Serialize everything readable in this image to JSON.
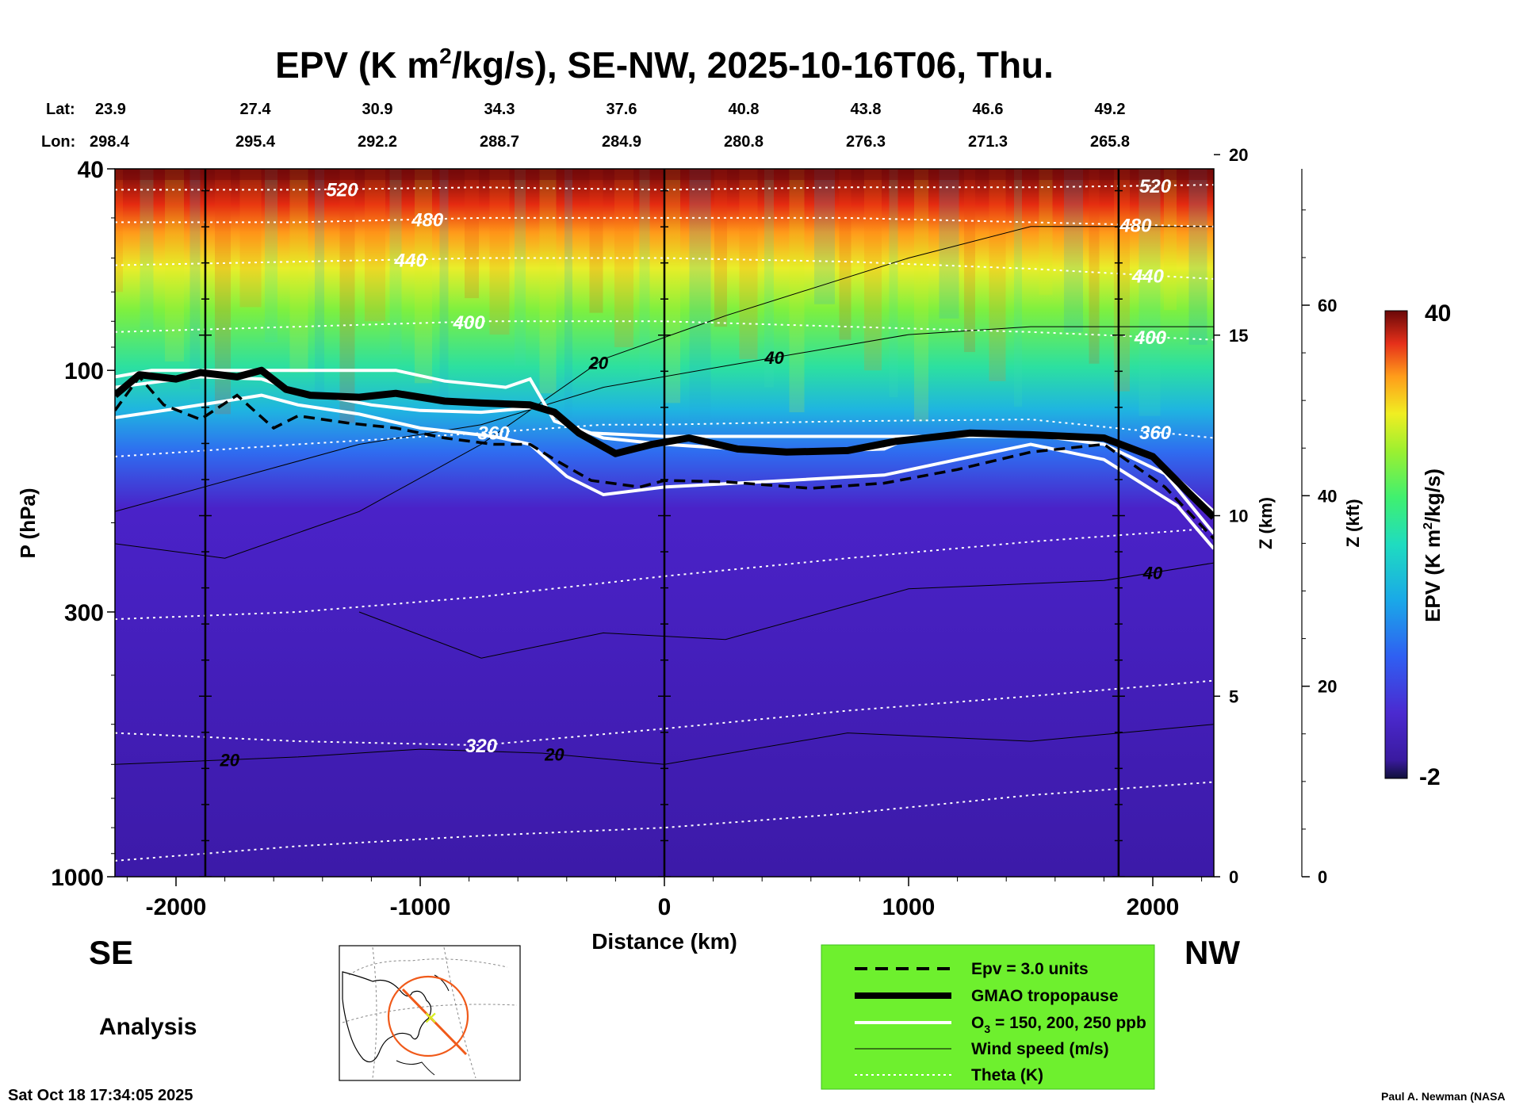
{
  "chart_data": {
    "type": "heatmap",
    "title": "EPV (K m²/kg/s), SE-NW, 2025-10-16T06, Thu.",
    "title_parts": {
      "pre": "EPV (K m",
      "sup": "2",
      "post": "/kg/s), SE-NW, 2025-10-16T06, Thu."
    },
    "xlabel": "Distance (km)",
    "ylabel": "P (hPa)",
    "zlabel": "Z (km)",
    "zkft_label": "Z (kft)",
    "xlim": [
      -2250,
      2250
    ],
    "ylim_hPa": [
      1000,
      40
    ],
    "x_ticks": [
      -2000,
      -1000,
      0,
      1000,
      2000
    ],
    "x_tick_labels": [
      "-2000",
      "-1000",
      "0",
      "1000",
      "2000"
    ],
    "p_ticks": [
      40,
      100,
      300,
      1000
    ],
    "p_tick_labels": [
      "40",
      "100",
      "300",
      "1000"
    ],
    "z_km_ticks": [
      0,
      5,
      10,
      15,
      20
    ],
    "z_km_tick_labels": [
      "0",
      "5",
      "10",
      "15",
      "20"
    ],
    "z_kft_ticks": [
      0,
      20,
      40,
      60
    ],
    "z_kft_tick_labels": [
      "0",
      "20",
      "40",
      "60"
    ],
    "lat_label": "Lat:",
    "lon_label": "Lon:",
    "lat_lon_positions_km": [
      -2250,
      -1750,
      -1250,
      -750,
      -250,
      250,
      750,
      1250,
      1750
    ],
    "lats": [
      "23.9",
      "27.4",
      "30.9",
      "34.3",
      "37.6",
      "40.8",
      "43.8",
      "46.6",
      "49.2"
    ],
    "lons": [
      "298.4",
      "295.4",
      "292.2",
      "288.7",
      "284.9",
      "280.8",
      "276.3",
      "271.3",
      "265.8"
    ],
    "vertical_markers_km": [
      -1880,
      0,
      1860
    ],
    "left_label": "SE",
    "right_label": "NW",
    "analysis_label": "Analysis",
    "timestamp": "Sat Oct 18 17:34:05 2025",
    "credit": "Paul A. Newman (NASA",
    "colorbar": {
      "min": -2,
      "max": 40,
      "min_label": "-2",
      "max_label": "40",
      "label": "EPV (K m²/kg/s)",
      "label_parts": {
        "pre": "EPV (K m",
        "sup": "2",
        "post": "/kg/s)"
      }
    },
    "legend": [
      {
        "label": "Epv = 3.0 units",
        "style": "dashed-black"
      },
      {
        "label": "GMAO tropopause",
        "style": "thick-black"
      },
      {
        "label": "O₃ = 150, 200, 250 ppb",
        "style": "white",
        "label_parts": {
          "pre": "O",
          "sub": "3",
          "post": " = 150, 200, 250 ppb"
        }
      },
      {
        "label": "Wind speed (m/s)",
        "style": "thin-black"
      },
      {
        "label": "Theta (K)",
        "style": "dotted-white"
      }
    ],
    "theta_isentropes": [
      {
        "label": "520",
        "points": [
          [
            -2250,
            44
          ],
          [
            -1500,
            44
          ],
          [
            -750,
            43.5
          ],
          [
            0,
            44
          ],
          [
            750,
            43.5
          ],
          [
            1500,
            43.5
          ],
          [
            2250,
            43
          ]
        ]
      },
      {
        "label": "480",
        "points": [
          [
            -2250,
            51
          ],
          [
            -1500,
            51
          ],
          [
            -750,
            50
          ],
          [
            0,
            50
          ],
          [
            750,
            50
          ],
          [
            1500,
            51
          ],
          [
            2250,
            52
          ]
        ]
      },
      {
        "label": "440",
        "points": [
          [
            -2250,
            62
          ],
          [
            -1500,
            61
          ],
          [
            -750,
            60
          ],
          [
            0,
            60
          ],
          [
            750,
            61
          ],
          [
            1500,
            63
          ],
          [
            2250,
            66
          ]
        ]
      },
      {
        "label": "400",
        "points": [
          [
            -2250,
            84
          ],
          [
            -1500,
            82
          ],
          [
            -750,
            80
          ],
          [
            0,
            80
          ],
          [
            750,
            82
          ],
          [
            1500,
            84
          ],
          [
            2250,
            87
          ]
        ]
      },
      {
        "label": "360",
        "points": [
          [
            -2250,
            148
          ],
          [
            -1500,
            140
          ],
          [
            -750,
            133
          ],
          [
            -250,
            128
          ],
          [
            0,
            128
          ],
          [
            750,
            126
          ],
          [
            1500,
            125
          ],
          [
            2250,
            136
          ]
        ]
      },
      {
        "label": "",
        "points": [
          [
            -2250,
            310
          ],
          [
            -1500,
            300
          ],
          [
            -750,
            280
          ],
          [
            0,
            255
          ],
          [
            750,
            235
          ],
          [
            1500,
            218
          ],
          [
            2250,
            205
          ]
        ]
      },
      {
        "label": "320",
        "points": [
          [
            -2250,
            520
          ],
          [
            -1500,
            540
          ],
          [
            -750,
            550
          ],
          [
            0,
            510
          ],
          [
            750,
            470
          ],
          [
            1500,
            440
          ],
          [
            2250,
            410
          ]
        ]
      },
      {
        "label": "",
        "points": [
          [
            -2250,
            930
          ],
          [
            -1500,
            870
          ],
          [
            -750,
            830
          ],
          [
            0,
            800
          ],
          [
            750,
            750
          ],
          [
            1500,
            690
          ],
          [
            2250,
            650
          ]
        ]
      }
    ],
    "wind_speed_contours": [
      {
        "label": "20",
        "points": [
          [
            -2250,
            220
          ],
          [
            -1800,
            235
          ],
          [
            -1250,
            190
          ],
          [
            -750,
            140
          ],
          [
            -250,
            95
          ],
          [
            250,
            78
          ],
          [
            1000,
            60
          ],
          [
            1500,
            52
          ],
          [
            2250,
            52
          ]
        ]
      },
      {
        "label": "40",
        "points": [
          [
            -2250,
            190
          ],
          [
            -1250,
            140
          ],
          [
            -750,
            128
          ],
          [
            -250,
            108
          ],
          [
            250,
            98
          ],
          [
            1000,
            85
          ],
          [
            1500,
            82
          ],
          [
            2250,
            82
          ]
        ]
      },
      {
        "label": "40",
        "points": [
          [
            -1250,
            300
          ],
          [
            -750,
            370
          ],
          [
            -250,
            330
          ],
          [
            250,
            340
          ],
          [
            1000,
            270
          ],
          [
            1800,
            260
          ],
          [
            2250,
            240
          ]
        ]
      },
      {
        "label": "20",
        "points": [
          [
            -2250,
            600
          ],
          [
            -1500,
            580
          ],
          [
            -1000,
            560
          ],
          [
            -500,
            570
          ],
          [
            0,
            600
          ],
          [
            750,
            520
          ],
          [
            1500,
            540
          ],
          [
            2250,
            500
          ]
        ]
      }
    ],
    "gmao_tropopause": [
      [
        -2250,
        112
      ],
      [
        -2150,
        102
      ],
      [
        -2000,
        104
      ],
      [
        -1900,
        101
      ],
      [
        -1750,
        103
      ],
      [
        -1650,
        100
      ],
      [
        -1550,
        109
      ],
      [
        -1450,
        112
      ],
      [
        -1250,
        113
      ],
      [
        -1100,
        111
      ],
      [
        -900,
        115
      ],
      [
        -750,
        116
      ],
      [
        -550,
        117
      ],
      [
        -450,
        121
      ],
      [
        -350,
        133
      ],
      [
        -200,
        146
      ],
      [
        -50,
        140
      ],
      [
        100,
        136
      ],
      [
        300,
        143
      ],
      [
        500,
        145
      ],
      [
        750,
        144
      ],
      [
        950,
        138
      ],
      [
        1250,
        133
      ],
      [
        1500,
        134
      ],
      [
        1800,
        136
      ],
      [
        2000,
        148
      ],
      [
        2150,
        175
      ],
      [
        2250,
        195
      ]
    ],
    "epv_3_units": [
      [
        -2250,
        120
      ],
      [
        -2150,
        103
      ],
      [
        -2050,
        117
      ],
      [
        -1900,
        125
      ],
      [
        -1750,
        112
      ],
      [
        -1600,
        130
      ],
      [
        -1500,
        123
      ],
      [
        -1300,
        127
      ],
      [
        -1100,
        130
      ],
      [
        -900,
        136
      ],
      [
        -700,
        140
      ],
      [
        -550,
        140
      ],
      [
        -450,
        150
      ],
      [
        -300,
        165
      ],
      [
        -100,
        170
      ],
      [
        0,
        165
      ],
      [
        250,
        166
      ],
      [
        600,
        171
      ],
      [
        900,
        167
      ],
      [
        1200,
        157
      ],
      [
        1500,
        145
      ],
      [
        1800,
        140
      ],
      [
        2050,
        170
      ],
      [
        2250,
        215
      ]
    ],
    "ozone_contours": [
      {
        "ppb": 150,
        "points": [
          [
            -2250,
            103
          ],
          [
            -2100,
            100
          ],
          [
            -1800,
            100
          ],
          [
            -1400,
            100
          ],
          [
            -1100,
            100
          ],
          [
            -900,
            105
          ],
          [
            -650,
            108
          ],
          [
            -550,
            104
          ],
          [
            -450,
            126
          ],
          [
            -300,
            133
          ],
          [
            0,
            135
          ],
          [
            500,
            135
          ],
          [
            1000,
            135
          ],
          [
            1500,
            135
          ],
          [
            1800,
            135
          ],
          [
            2000,
            148
          ],
          [
            2250,
            190
          ]
        ]
      },
      {
        "ppb": 200,
        "points": [
          [
            -2250,
            108
          ],
          [
            -2050,
            105
          ],
          [
            -1900,
            103
          ],
          [
            -1650,
            104
          ],
          [
            -1500,
            110
          ],
          [
            -1200,
            117
          ],
          [
            -1000,
            120
          ],
          [
            -750,
            121
          ],
          [
            -500,
            118
          ],
          [
            -400,
            128
          ],
          [
            -250,
            136
          ],
          [
            0,
            140
          ],
          [
            500,
            145
          ],
          [
            900,
            143
          ],
          [
            1000,
            136
          ],
          [
            1500,
            134
          ],
          [
            1800,
            140
          ],
          [
            2050,
            160
          ],
          [
            2250,
            210
          ]
        ]
      },
      {
        "ppb": 250,
        "points": [
          [
            -2250,
            124
          ],
          [
            -2000,
            119
          ],
          [
            -1800,
            115
          ],
          [
            -1650,
            112
          ],
          [
            -1500,
            117
          ],
          [
            -1250,
            122
          ],
          [
            -1000,
            130
          ],
          [
            -700,
            135
          ],
          [
            -550,
            140
          ],
          [
            -400,
            162
          ],
          [
            -250,
            176
          ],
          [
            0,
            170
          ],
          [
            500,
            165
          ],
          [
            900,
            161
          ],
          [
            1200,
            150
          ],
          [
            1500,
            140
          ],
          [
            1800,
            150
          ],
          [
            2100,
            185
          ],
          [
            2250,
            225
          ]
        ]
      }
    ]
  }
}
